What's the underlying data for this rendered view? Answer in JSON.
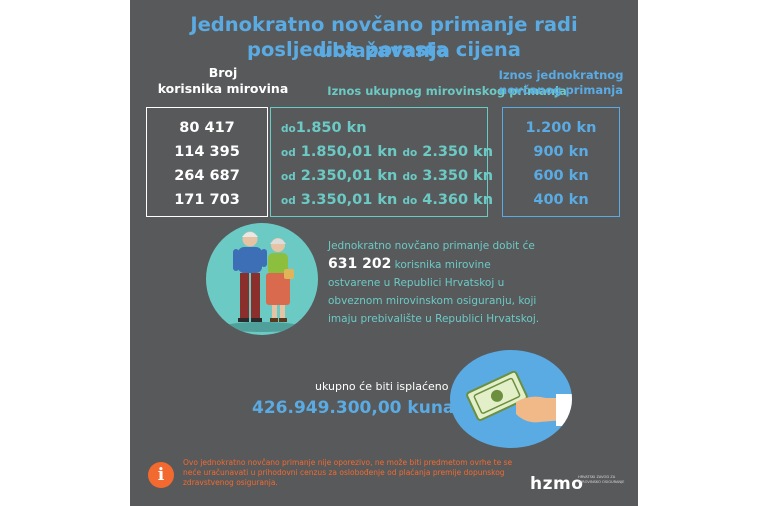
{
  "title": {
    "line1": "Jednokratno novčano primanje radi ublažavanja",
    "line2": "posljedica porasta cijena"
  },
  "headers": {
    "count_line1": "Broj",
    "count_line2": "korisnika mirovina",
    "total": "Iznos ukupnog mirovinskog primanja",
    "onetime_line1": "Iznos jednokratnog",
    "onetime_line2": "novčanog primanja"
  },
  "rows": [
    {
      "count": "80 417",
      "pre1": "do",
      "val1": "1.850 kn",
      "pre2": "",
      "val2": "",
      "amount": "1.200 kn"
    },
    {
      "count": "114 395",
      "pre1": "od",
      "val1": "1.850,01 kn",
      "pre2": "do",
      "val2": "2.350 kn",
      "amount": "900 kn"
    },
    {
      "count": "264 687",
      "pre1": "od",
      "val1": "2.350,01 kn",
      "pre2": "do",
      "val2": "3.350 kn",
      "amount": "600 kn"
    },
    {
      "count": "171 703",
      "pre1": "od",
      "val1": "3.350,01 kn",
      "pre2": "do",
      "val2": "4.360 kn",
      "amount": "400 kn"
    }
  ],
  "info": {
    "line1": "Jednokratno novčano primanje dobit će",
    "number": "631 202",
    "line2_rest": "korisnika mirovine",
    "line3": "ostvarene u Republici Hrvatskoj u",
    "line4": "obveznom mirovinskom osiguranju, koji",
    "line5": "imaju prebivalište u Republici Hrvatskoj."
  },
  "paid": {
    "label": "ukupno će biti isplaćeno",
    "amount": "426.949.300,00 kuna"
  },
  "note": {
    "icon": "i",
    "line1": "Ovo jednokratno novčano primanje nije oporezivo, ne može biti predmetom ovrhe te se",
    "line2": "neće uračunavati u prihodovni cenzus za oslobođenje od plaćanja premije dopunskog",
    "line3": "zdravstvenog osiguranja."
  },
  "logo": {
    "name": "hzmo",
    "sub": "HRVATSKI ZAVOD ZA MIROVINSKO OSIGURANJE"
  },
  "colors": {
    "background": "#58595b",
    "blue": "#5aabe3",
    "teal": "#6ccac5",
    "orange": "#f26a2f"
  }
}
